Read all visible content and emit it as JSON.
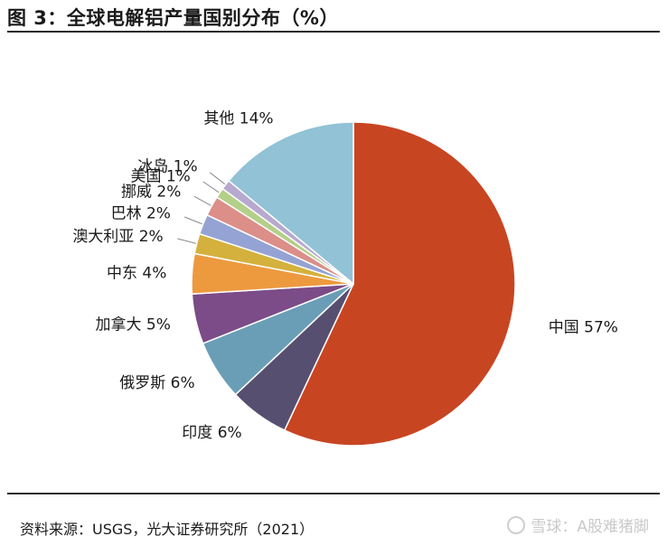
{
  "title": "图 3：全球电解铝产量国别分布（%）",
  "source": "资料来源：USGS，光大证券研究所（2021）",
  "watermark": "雪球：A股难猪脚",
  "chart_data": {
    "type": "pie",
    "title": "图 3：全球电解铝产量国别分布（%）",
    "unit": "%",
    "slices": [
      {
        "label": "中国",
        "value": 57,
        "color": "#c84522"
      },
      {
        "label": "印度",
        "value": 6,
        "color": "#574f70"
      },
      {
        "label": "俄罗斯",
        "value": 6,
        "color": "#6a9eb6"
      },
      {
        "label": "加拿大",
        "value": 5,
        "color": "#7b4c87"
      },
      {
        "label": "中东",
        "value": 4,
        "color": "#ed9a3f"
      },
      {
        "label": "澳大利亚",
        "value": 2,
        "color": "#d4b13c"
      },
      {
        "label": "巴林",
        "value": 2,
        "color": "#94a3d3"
      },
      {
        "label": "挪威",
        "value": 2,
        "color": "#dc8e88"
      },
      {
        "label": "美国",
        "value": 1,
        "color": "#b4cf88"
      },
      {
        "label": "冰岛",
        "value": 1,
        "color": "#b7a9cf"
      },
      {
        "label": "其他",
        "value": 14,
        "color": "#92c2d6"
      }
    ],
    "start_angle": "12 o'clock",
    "direction": "clockwise"
  }
}
